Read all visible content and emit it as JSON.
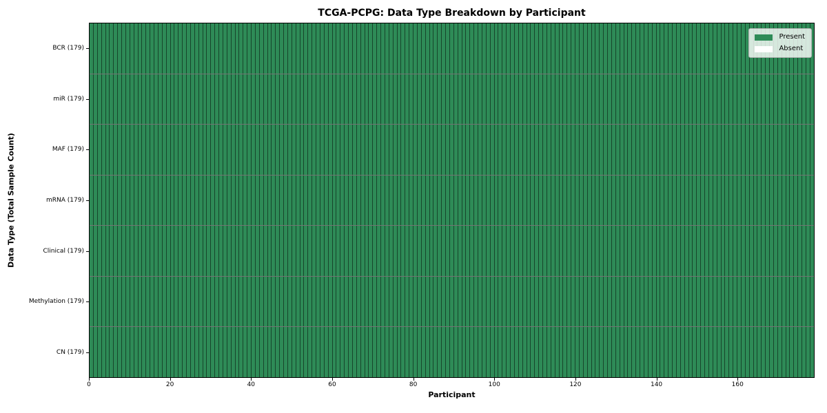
{
  "chart_data": {
    "type": "heatmap",
    "title": "TCGA-PCPG: Data Type Breakdown by Participant",
    "xlabel": "Participant",
    "ylabel": "Data Type (Total Sample Count)",
    "n_participants": 179,
    "x_range": [
      0,
      179
    ],
    "x_ticks": [
      0,
      20,
      40,
      60,
      80,
      100,
      120,
      140,
      160
    ],
    "rows": [
      {
        "label": "BCR (179)",
        "data_type": "BCR",
        "total_samples": 179,
        "present_count": 179,
        "absent_count": 0
      },
      {
        "label": "miR (179)",
        "data_type": "miR",
        "total_samples": 179,
        "present_count": 179,
        "absent_count": 0
      },
      {
        "label": "MAF (179)",
        "data_type": "MAF",
        "total_samples": 179,
        "present_count": 179,
        "absent_count": 0
      },
      {
        "label": "mRNA (179)",
        "data_type": "mRNA",
        "total_samples": 179,
        "present_count": 179,
        "absent_count": 0
      },
      {
        "label": "Clinical (179)",
        "data_type": "Clinical",
        "total_samples": 179,
        "present_count": 179,
        "absent_count": 0
      },
      {
        "label": "Methylation (179)",
        "data_type": "Methylation",
        "total_samples": 179,
        "present_count": 179,
        "absent_count": 0
      },
      {
        "label": "CN (179)",
        "data_type": "CN",
        "total_samples": 179,
        "present_count": 179,
        "absent_count": 0
      }
    ],
    "legend": [
      {
        "label": "Present",
        "color": "#2e8b57"
      },
      {
        "label": "Absent",
        "color": "#ffffff"
      }
    ],
    "colors": {
      "present": "#2e8b57",
      "absent": "#ffffff",
      "grid_line": "rgba(0,0,0,0.5)"
    },
    "legend_position": "upper right",
    "grid": "cell-borders"
  }
}
